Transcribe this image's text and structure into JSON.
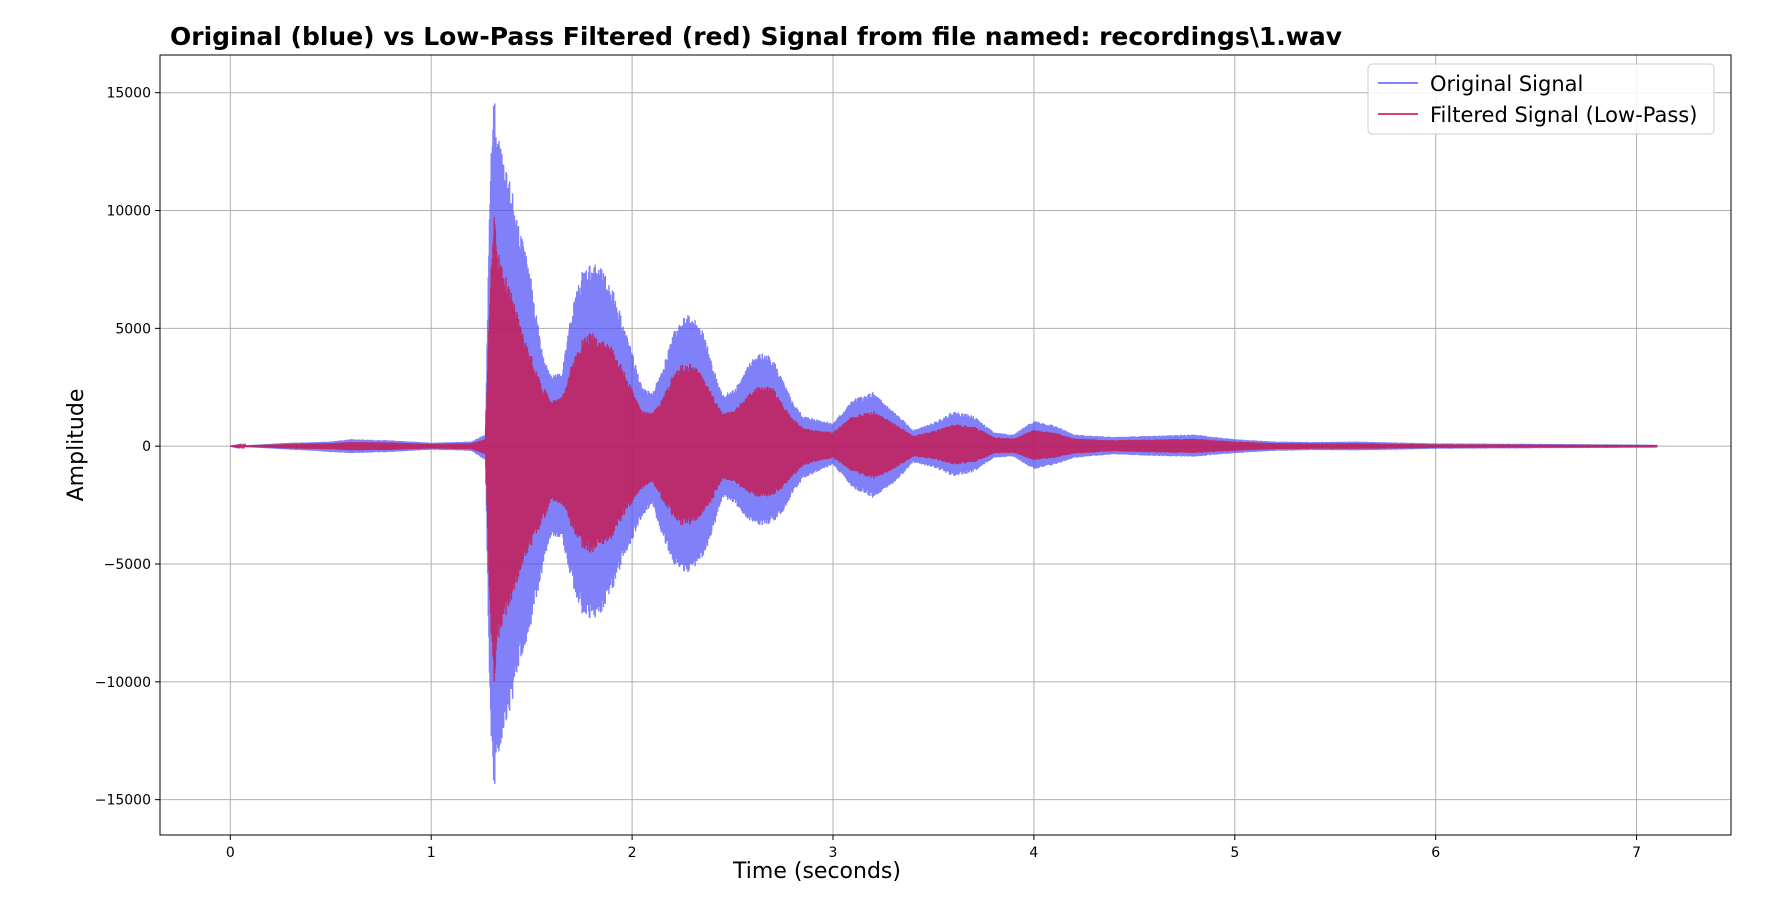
{
  "chart_data": {
    "type": "line",
    "title": "Original (blue) vs Low-Pass Filtered (red) Signal from file named: recordings\\1.wav",
    "xlabel": "Time (seconds)",
    "ylabel": "Amplitude",
    "xlim": [
      -0.35,
      7.47
    ],
    "ylim": [
      -16500,
      16600
    ],
    "xticks": [
      0,
      1,
      2,
      3,
      4,
      5,
      6,
      7
    ],
    "xtick_labels": [
      "0",
      "1",
      "2",
      "3",
      "4",
      "5",
      "6",
      "7"
    ],
    "yticks": [
      -15000,
      -10000,
      -5000,
      0,
      5000,
      10000,
      15000
    ],
    "ytick_labels": [
      "−15000",
      "−10000",
      "−5000",
      "0",
      "5000",
      "10000",
      "15000"
    ],
    "grid": true,
    "legend_position": "top-right",
    "series": [
      {
        "name": "Original Signal",
        "color": "#4a4af5",
        "envelope_t": [
          0,
          0.3,
          0.5,
          0.6,
          0.8,
          1.0,
          1.2,
          1.27,
          1.29,
          1.31,
          1.33,
          1.36,
          1.4,
          1.45,
          1.5,
          1.55,
          1.6,
          1.65,
          1.7,
          1.75,
          1.8,
          1.85,
          1.9,
          1.95,
          2.0,
          2.05,
          2.1,
          2.15,
          2.2,
          2.25,
          2.3,
          2.35,
          2.4,
          2.45,
          2.5,
          2.55,
          2.6,
          2.65,
          2.7,
          2.75,
          2.8,
          2.85,
          2.9,
          2.95,
          3.0,
          3.1,
          3.2,
          3.3,
          3.4,
          3.5,
          3.6,
          3.7,
          3.8,
          3.9,
          4.0,
          4.1,
          4.2,
          4.4,
          4.6,
          4.8,
          5.0,
          5.2,
          5.4,
          5.6,
          5.8,
          6.0,
          6.5,
          7.1
        ],
        "envelope_upper": [
          0,
          150,
          200,
          300,
          250,
          150,
          200,
          500,
          10500,
          15100,
          13500,
          12000,
          11000,
          9000,
          7000,
          4200,
          3000,
          3200,
          5800,
          7500,
          7900,
          7500,
          6800,
          5500,
          4000,
          2500,
          2300,
          3200,
          4800,
          5500,
          5600,
          5000,
          3500,
          2200,
          2400,
          3000,
          3800,
          4000,
          3800,
          2800,
          1900,
          1300,
          1200,
          1100,
          1000,
          2000,
          2300,
          1500,
          700,
          1000,
          1500,
          1300,
          600,
          500,
          1100,
          900,
          500,
          400,
          450,
          500,
          300,
          200,
          180,
          200,
          160,
          120,
          100,
          60
        ],
        "envelope_lower": [
          0,
          -150,
          -250,
          -300,
          -250,
          -150,
          -200,
          -600,
          -10500,
          -14800,
          -13500,
          -12000,
          -11000,
          -9000,
          -7500,
          -5500,
          -3800,
          -4000,
          -5800,
          -7200,
          -7500,
          -7000,
          -6200,
          -5000,
          -4000,
          -3000,
          -2500,
          -3800,
          -5000,
          -5400,
          -5300,
          -4800,
          -3700,
          -2200,
          -2400,
          -2900,
          -3300,
          -3400,
          -3300,
          -2800,
          -2000,
          -1400,
          -1200,
          -1000,
          -800,
          -1800,
          -2200,
          -1600,
          -700,
          -900,
          -1300,
          -1100,
          -500,
          -450,
          -1000,
          -800,
          -500,
          -350,
          -420,
          -450,
          -300,
          -200,
          -170,
          -180,
          -150,
          -110,
          -90,
          -60
        ]
      },
      {
        "name": "Filtered Signal (Low-Pass)",
        "color": "#c8164a",
        "envelope_t": [
          0,
          0.3,
          0.5,
          0.6,
          0.8,
          1.0,
          1.2,
          1.27,
          1.29,
          1.31,
          1.33,
          1.36,
          1.4,
          1.45,
          1.5,
          1.55,
          1.6,
          1.65,
          1.7,
          1.75,
          1.8,
          1.85,
          1.9,
          1.95,
          2.0,
          2.05,
          2.1,
          2.15,
          2.2,
          2.25,
          2.3,
          2.35,
          2.4,
          2.45,
          2.5,
          2.55,
          2.6,
          2.65,
          2.7,
          2.75,
          2.8,
          2.85,
          2.9,
          2.95,
          3.0,
          3.1,
          3.2,
          3.3,
          3.4,
          3.5,
          3.6,
          3.7,
          3.8,
          3.9,
          4.0,
          4.1,
          4.2,
          4.4,
          4.6,
          4.8,
          5.0,
          5.2,
          5.4,
          5.6,
          5.8,
          6.0,
          6.5,
          7.1
        ],
        "envelope_upper": [
          0,
          100,
          130,
          180,
          160,
          100,
          130,
          300,
          6000,
          10000,
          8500,
          7500,
          6500,
          5000,
          3800,
          2600,
          2000,
          2100,
          3500,
          4600,
          4900,
          4600,
          4200,
          3400,
          2400,
          1500,
          1400,
          2000,
          3000,
          3500,
          3500,
          3100,
          2200,
          1400,
          1500,
          1900,
          2400,
          2600,
          2500,
          1800,
          1200,
          800,
          700,
          650,
          600,
          1300,
          1500,
          1000,
          450,
          650,
          950,
          850,
          400,
          330,
          700,
          580,
          330,
          260,
          290,
          320,
          200,
          130,
          120,
          130,
          100,
          80,
          65,
          40
        ],
        "envelope_lower": [
          0,
          -100,
          -130,
          -180,
          -160,
          -100,
          -130,
          -350,
          -6500,
          -10300,
          -8500,
          -7500,
          -6500,
          -5200,
          -4200,
          -3300,
          -2400,
          -2500,
          -3500,
          -4400,
          -4600,
          -4300,
          -3900,
          -3100,
          -2400,
          -1800,
          -1500,
          -2300,
          -3000,
          -3400,
          -3300,
          -3000,
          -2300,
          -1400,
          -1500,
          -1800,
          -2100,
          -2200,
          -2100,
          -1800,
          -1300,
          -850,
          -700,
          -600,
          -500,
          -1100,
          -1400,
          -1000,
          -450,
          -550,
          -800,
          -700,
          -320,
          -290,
          -600,
          -500,
          -320,
          -220,
          -270,
          -290,
          -200,
          -130,
          -110,
          -115,
          -95,
          -70,
          -58,
          -40
        ]
      }
    ]
  }
}
